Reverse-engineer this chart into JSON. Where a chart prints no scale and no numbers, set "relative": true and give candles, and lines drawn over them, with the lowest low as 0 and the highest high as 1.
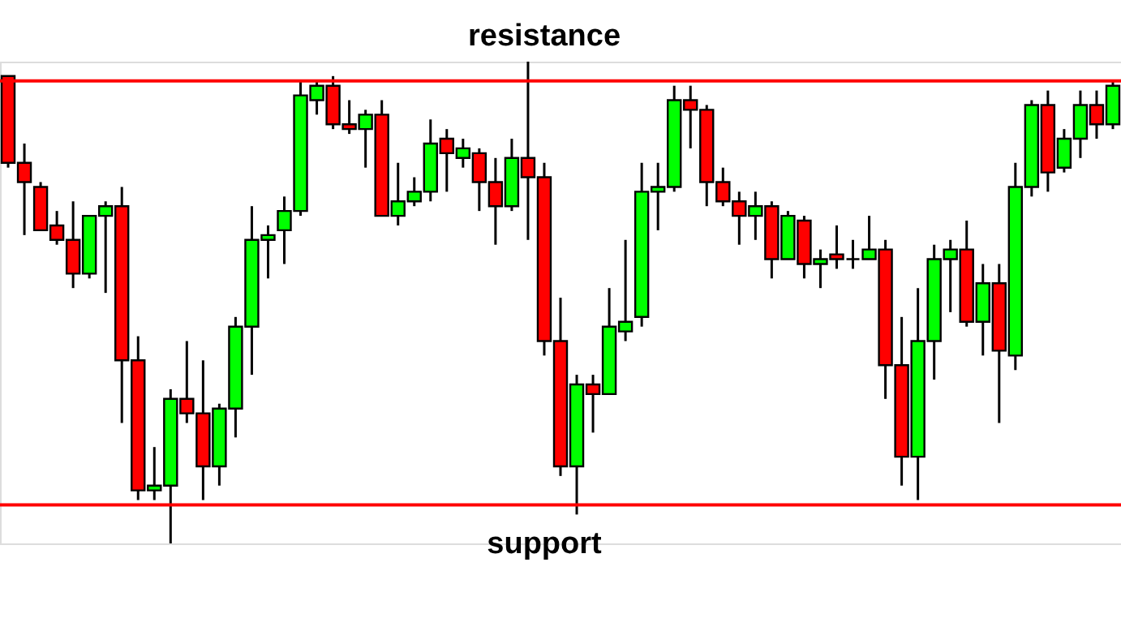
{
  "chart_data": {
    "type": "candlestick",
    "relative": true,
    "categories": [
      null,
      null,
      null,
      null,
      null,
      null,
      null,
      null,
      null,
      null,
      null,
      null,
      null,
      null,
      null,
      null,
      null,
      null,
      null,
      null,
      null,
      null,
      null,
      null,
      null,
      null,
      null,
      null,
      null,
      null,
      null,
      null,
      null,
      null,
      null,
      null,
      null,
      null,
      null,
      null,
      null,
      null,
      null,
      null,
      null,
      null,
      null,
      null,
      null,
      null,
      null,
      null,
      null,
      null,
      null,
      null,
      null,
      null,
      null,
      null,
      null,
      null,
      null,
      null,
      null,
      null,
      null,
      null,
      null
    ],
    "ohlc": [
      [
        0.97,
        0.97,
        0.78,
        0.79
      ],
      [
        0.79,
        0.83,
        0.64,
        0.75
      ],
      [
        0.74,
        0.75,
        0.65,
        0.65
      ],
      [
        0.66,
        0.69,
        0.62,
        0.63
      ],
      [
        0.63,
        0.71,
        0.53,
        0.56
      ],
      [
        0.56,
        0.68,
        0.55,
        0.68
      ],
      [
        0.68,
        0.71,
        0.52,
        0.7
      ],
      [
        0.7,
        0.74,
        0.25,
        0.38
      ],
      [
        0.38,
        0.43,
        0.09,
        0.11
      ],
      [
        0.11,
        0.2,
        0.09,
        0.12
      ],
      [
        0.12,
        0.32,
        0,
        0.3
      ],
      [
        0.3,
        0.42,
        0.25,
        0.27
      ],
      [
        0.27,
        0.38,
        0.09,
        0.16
      ],
      [
        0.16,
        0.29,
        0.12,
        0.28
      ],
      [
        0.28,
        0.47,
        0.22,
        0.45
      ],
      [
        0.45,
        0.7,
        0.35,
        0.63
      ],
      [
        0.63,
        0.66,
        0.55,
        0.64
      ],
      [
        0.65,
        0.72,
        0.58,
        0.69
      ],
      [
        0.69,
        0.96,
        0.68,
        0.93
      ],
      [
        0.92,
        0.96,
        0.89,
        0.95
      ],
      [
        0.95,
        0.97,
        0.86,
        0.87
      ],
      [
        0.87,
        0.92,
        0.85,
        0.86
      ],
      [
        0.86,
        0.9,
        0.78,
        0.89
      ],
      [
        0.89,
        0.92,
        0.68,
        0.68
      ],
      [
        0.68,
        0.79,
        0.66,
        0.71
      ],
      [
        0.71,
        0.76,
        0.7,
        0.73
      ],
      [
        0.73,
        0.88,
        0.71,
        0.83
      ],
      [
        0.84,
        0.86,
        0.73,
        0.81
      ],
      [
        0.8,
        0.84,
        0.78,
        0.82
      ],
      [
        0.81,
        0.82,
        0.69,
        0.75
      ],
      [
        0.75,
        0.8,
        0.62,
        0.7
      ],
      [
        0.7,
        0.84,
        0.69,
        0.8
      ],
      [
        0.8,
        1,
        0.63,
        0.76
      ],
      [
        0.76,
        0.79,
        0.39,
        0.42
      ],
      [
        0.42,
        0.51,
        0.14,
        0.16
      ],
      [
        0.16,
        0.35,
        0.06,
        0.33
      ],
      [
        0.33,
        0.35,
        0.23,
        0.31
      ],
      [
        0.31,
        0.53,
        0.31,
        0.45
      ],
      [
        0.44,
        0.63,
        0.42,
        0.46
      ],
      [
        0.47,
        0.79,
        0.45,
        0.73
      ],
      [
        0.73,
        0.79,
        0.65,
        0.74
      ],
      [
        0.74,
        0.95,
        0.73,
        0.92
      ],
      [
        0.92,
        0.95,
        0.82,
        0.9
      ],
      [
        0.9,
        0.91,
        0.7,
        0.75
      ],
      [
        0.75,
        0.78,
        0.7,
        0.71
      ],
      [
        0.71,
        0.73,
        0.62,
        0.68
      ],
      [
        0.68,
        0.73,
        0.63,
        0.7
      ],
      [
        0.7,
        0.71,
        0.55,
        0.59
      ],
      [
        0.59,
        0.69,
        0.59,
        0.68
      ],
      [
        0.67,
        0.68,
        0.55,
        0.58
      ],
      [
        0.58,
        0.61,
        0.53,
        0.59
      ],
      [
        0.6,
        0.66,
        0.57,
        0.59
      ],
      [
        0.59,
        0.63,
        0.57,
        0.59
      ],
      [
        0.59,
        0.68,
        0.59,
        0.61
      ],
      [
        0.61,
        0.63,
        0.3,
        0.37
      ],
      [
        0.37,
        0.47,
        0.12,
        0.18
      ],
      [
        0.18,
        0.53,
        0.09,
        0.42
      ],
      [
        0.42,
        0.62,
        0.34,
        0.59
      ],
      [
        0.59,
        0.63,
        0.48,
        0.61
      ],
      [
        0.61,
        0.67,
        0.45,
        0.46
      ],
      [
        0.46,
        0.58,
        0.39,
        0.54
      ],
      [
        0.54,
        0.58,
        0.25,
        0.4
      ],
      [
        0.39,
        0.79,
        0.36,
        0.74
      ],
      [
        0.74,
        0.92,
        0.72,
        0.91
      ],
      [
        0.91,
        0.94,
        0.73,
        0.77
      ],
      [
        0.78,
        0.86,
        0.77,
        0.84
      ],
      [
        0.84,
        0.94,
        0.8,
        0.91
      ],
      [
        0.91,
        0.94,
        0.84,
        0.87
      ],
      [
        0.87,
        0.96,
        0.86,
        0.95
      ]
    ],
    "colors": [
      "#ff0000",
      "#ff0000",
      "#ff0000",
      "#ff0000",
      "#ff0000",
      "#00ff00",
      "#00ff00",
      "#ff0000",
      "#ff0000",
      "#00ff00",
      "#00ff00",
      "#ff0000",
      "#ff0000",
      "#00ff00",
      "#00ff00",
      "#00ff00",
      "#00ff00",
      "#00ff00",
      "#00ff00",
      "#00ff00",
      "#ff0000",
      "#ff0000",
      "#00ff00",
      "#ff0000",
      "#00ff00",
      "#00ff00",
      "#00ff00",
      "#ff0000",
      "#00ff00",
      "#ff0000",
      "#ff0000",
      "#00ff00",
      "#ff0000",
      "#ff0000",
      "#ff0000",
      "#00ff00",
      "#ff0000",
      "#00ff00",
      "#00ff00",
      "#00ff00",
      "#00ff00",
      "#00ff00",
      "#ff0000",
      "#ff0000",
      "#ff0000",
      "#ff0000",
      "#00ff00",
      "#ff0000",
      "#00ff00",
      "#ff0000",
      "#00ff00",
      "#ff0000",
      "#000000",
      "#00ff00",
      "#ff0000",
      "#ff0000",
      "#00ff00",
      "#00ff00",
      "#00ff00",
      "#ff0000",
      "#00ff00",
      "#ff0000",
      "#00ff00",
      "#00ff00",
      "#ff0000",
      "#00ff00",
      "#00ff00",
      "#ff0000",
      "#00ff00"
    ],
    "ref_lines": [
      {
        "axis": "y",
        "value": 0.96,
        "label": "resistance",
        "color": "#ff0000"
      },
      {
        "axis": "y",
        "value": 0.08,
        "label": "support",
        "color": "#ff0000"
      }
    ]
  }
}
